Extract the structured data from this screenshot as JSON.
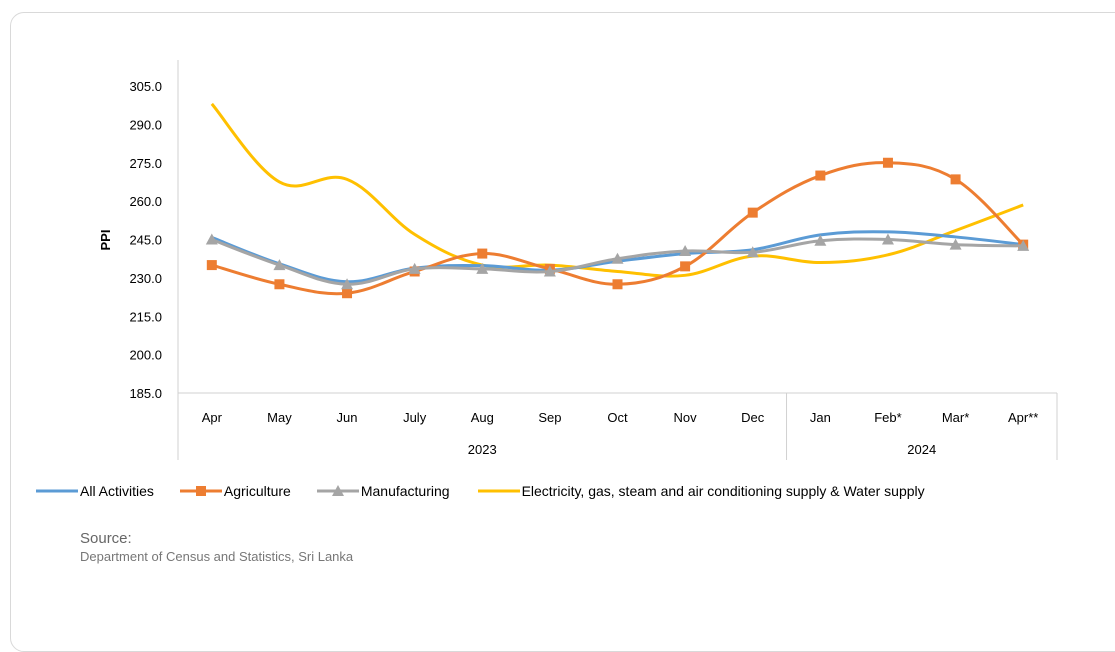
{
  "chart_data": {
    "type": "line",
    "ylabel": "PPI",
    "ylim": [
      185.0,
      305.0
    ],
    "yticks": [
      "305.0",
      "290.0",
      "275.0",
      "260.0",
      "245.0",
      "230.0",
      "215.0",
      "200.0",
      "185.0"
    ],
    "categories": [
      "Apr",
      "May",
      "Jun",
      "July",
      "Aug",
      "Sep",
      "Oct",
      "Nov",
      "Dec",
      "Jan",
      "Feb*",
      "Mar*",
      "Apr**"
    ],
    "groups": [
      {
        "label": "2023",
        "span": 9
      },
      {
        "label": "2024",
        "span": 4
      }
    ],
    "grid": false,
    "legend_position": "bottom",
    "series": [
      {
        "name": "All Activities",
        "color": "#5b9bd5",
        "marker": "none",
        "values": [
          245.8,
          235.5,
          228.5,
          233.8,
          234.8,
          233.0,
          236.5,
          239.5,
          241.0,
          246.8,
          248.0,
          246.0,
          243.0
        ]
      },
      {
        "name": "Agriculture",
        "color": "#ed7d31",
        "marker": "square",
        "values": [
          235.0,
          227.5,
          224.0,
          232.5,
          239.5,
          233.5,
          227.5,
          234.5,
          255.5,
          270.0,
          275.0,
          268.5,
          243.0
        ]
      },
      {
        "name": "Manufacturing",
        "color": "#a5a5a5",
        "marker": "triangle",
        "values": [
          245.0,
          235.0,
          227.5,
          233.5,
          233.5,
          232.5,
          237.5,
          240.5,
          240.0,
          244.5,
          245.0,
          243.0,
          242.5
        ]
      },
      {
        "name": "Electricity, gas, steam and air conditioning supply & Water supply",
        "color": "#ffc000",
        "marker": "none",
        "values": [
          298.0,
          267.5,
          268.5,
          247.0,
          235.0,
          235.0,
          232.5,
          231.0,
          238.5,
          236.0,
          239.0,
          248.5,
          258.5
        ]
      }
    ]
  },
  "source": {
    "title": "Source:",
    "body": "Department of Census and Statistics, Sri Lanka"
  }
}
